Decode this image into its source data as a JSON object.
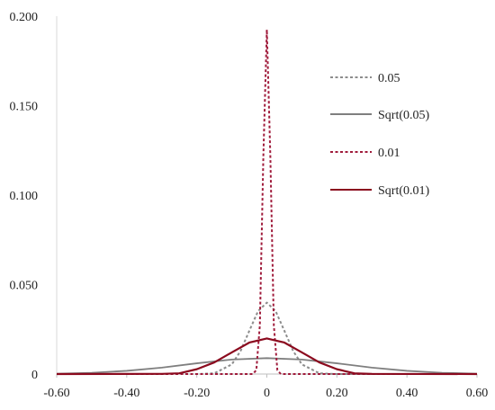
{
  "chart_data": {
    "type": "line",
    "title": "",
    "xlabel": "",
    "ylabel": "",
    "xlim": [
      -0.6,
      0.6
    ],
    "ylim": [
      0,
      0.2
    ],
    "x_ticks": [
      -0.6,
      -0.4,
      -0.2,
      0,
      0.2,
      0.4,
      0.6
    ],
    "x_tick_labels": [
      "-0.60",
      "-0.40",
      "-0.20",
      "0",
      "0.20",
      "0.40",
      "0.60"
    ],
    "y_ticks": [
      0,
      0.05,
      0.1,
      0.15,
      0.2
    ],
    "y_tick_labels": [
      "0",
      "0.050",
      "0.100",
      "0.150",
      "0.200"
    ],
    "grid": false,
    "legend_position": "right",
    "series": [
      {
        "name": "0.05",
        "color": "#8c8c8c",
        "style": "dotted",
        "x": [
          -0.6,
          -0.2,
          -0.15,
          -0.1,
          -0.075,
          -0.05,
          -0.025,
          0,
          0.025,
          0.05,
          0.075,
          0.1,
          0.15,
          0.2,
          0.6
        ],
        "y": [
          0,
          0,
          0.0004,
          0.0054,
          0.0129,
          0.0242,
          0.0352,
          0.0399,
          0.0352,
          0.0242,
          0.0129,
          0.0054,
          0.0004,
          0,
          0
        ]
      },
      {
        "name": "Sqrt(0.05)",
        "color": "#7f7f7f",
        "style": "solid",
        "x": [
          -0.6,
          -0.5,
          -0.4,
          -0.3,
          -0.2,
          -0.1,
          0,
          0.1,
          0.2,
          0.3,
          0.4,
          0.5,
          0.6
        ],
        "y": [
          0.0002,
          0.0007,
          0.0018,
          0.0036,
          0.006,
          0.0081,
          0.0089,
          0.0081,
          0.006,
          0.0036,
          0.0018,
          0.0007,
          0.0002
        ]
      },
      {
        "name": "0.01",
        "color": "#a01c3c",
        "style": "dotted",
        "x": [
          -0.6,
          -0.04,
          -0.03,
          -0.02,
          -0.01,
          0,
          0.01,
          0.02,
          0.03,
          0.04,
          0.6
        ],
        "y": [
          0,
          0,
          0.0022,
          0.0271,
          0.1215,
          0.1925,
          0.1215,
          0.0271,
          0.0022,
          0,
          0
        ]
      },
      {
        "name": "Sqrt(0.01)",
        "color": "#8b0a1e",
        "style": "solid",
        "x": [
          -0.6,
          -0.3,
          -0.25,
          -0.2,
          -0.15,
          -0.1,
          -0.05,
          0,
          0.05,
          0.1,
          0.15,
          0.2,
          0.25,
          0.3,
          0.6
        ],
        "y": [
          0,
          0.0001,
          0.0004,
          0.0027,
          0.0065,
          0.0121,
          0.0176,
          0.0199,
          0.0176,
          0.0121,
          0.0065,
          0.0027,
          0.0004,
          0.0001,
          0
        ]
      }
    ]
  }
}
